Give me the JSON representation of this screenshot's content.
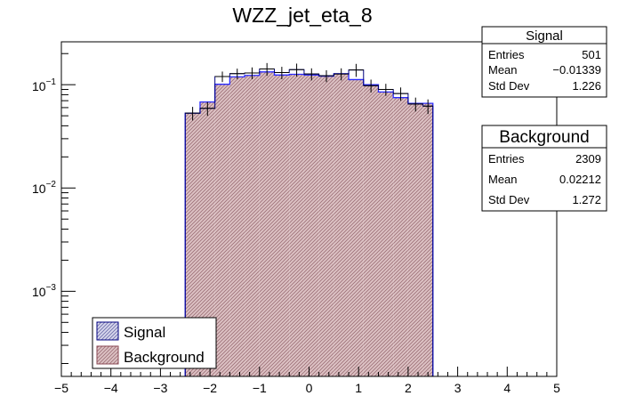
{
  "chart_data": {
    "type": "bar",
    "title": "WZZ_jet_eta_8",
    "xlabel": "",
    "ylabel": "",
    "xlim": [
      -5,
      5
    ],
    "ylim": [
      0.00015,
      0.26
    ],
    "yscale": "log",
    "x_ticks": [
      "−5",
      "−4",
      "−3",
      "−2",
      "−1",
      "0",
      "1",
      "2",
      "3",
      "4",
      "5"
    ],
    "y_ticks": [
      {
        "value": 0.001,
        "base": "10",
        "exp": "−3"
      },
      {
        "value": 0.01,
        "base": "10",
        "exp": "−2"
      },
      {
        "value": 0.1,
        "base": "10",
        "exp": "−1"
      }
    ],
    "bin_edges": [
      -2.5,
      -2.2,
      -1.9,
      -1.6,
      -1.3,
      -1.0,
      -0.7,
      -0.4,
      -0.1,
      0.2,
      0.5,
      0.8,
      1.1,
      1.4,
      1.7,
      2.0,
      2.3,
      2.5
    ],
    "series": [
      {
        "name": "Background",
        "values": [
          0.053,
          0.068,
          0.101,
          0.119,
          0.123,
          0.133,
          0.124,
          0.126,
          0.124,
          0.121,
          0.128,
          0.112,
          0.1,
          0.085,
          0.075,
          0.066,
          0.066
        ],
        "fill": "#e8c8c8",
        "line": "#2b2bff"
      },
      {
        "name": "Signal",
        "values": [
          0.053,
          0.059,
          0.12,
          0.128,
          0.13,
          0.142,
          0.131,
          0.14,
          0.127,
          0.122,
          0.127,
          0.139,
          0.098,
          0.09,
          0.082,
          0.065,
          0.062
        ],
        "errors": [
          0.008,
          0.009,
          0.014,
          0.015,
          0.017,
          0.02,
          0.018,
          0.02,
          0.017,
          0.016,
          0.017,
          0.02,
          0.014,
          0.012,
          0.012,
          0.01,
          0.01
        ],
        "line": "#000080"
      }
    ],
    "stats": [
      {
        "name": "Signal",
        "entries": "501",
        "mean": "−0.01339",
        "std_dev": "1.226"
      },
      {
        "name": "Background",
        "entries": "2309",
        "mean": "0.02212",
        "std_dev": "1.272"
      }
    ],
    "stat_labels": {
      "entries": "Entries",
      "mean": "Mean",
      "std_dev": "Std Dev"
    },
    "legend": {
      "placement": "bottom-left",
      "entries": [
        "Signal",
        "Background"
      ]
    }
  }
}
